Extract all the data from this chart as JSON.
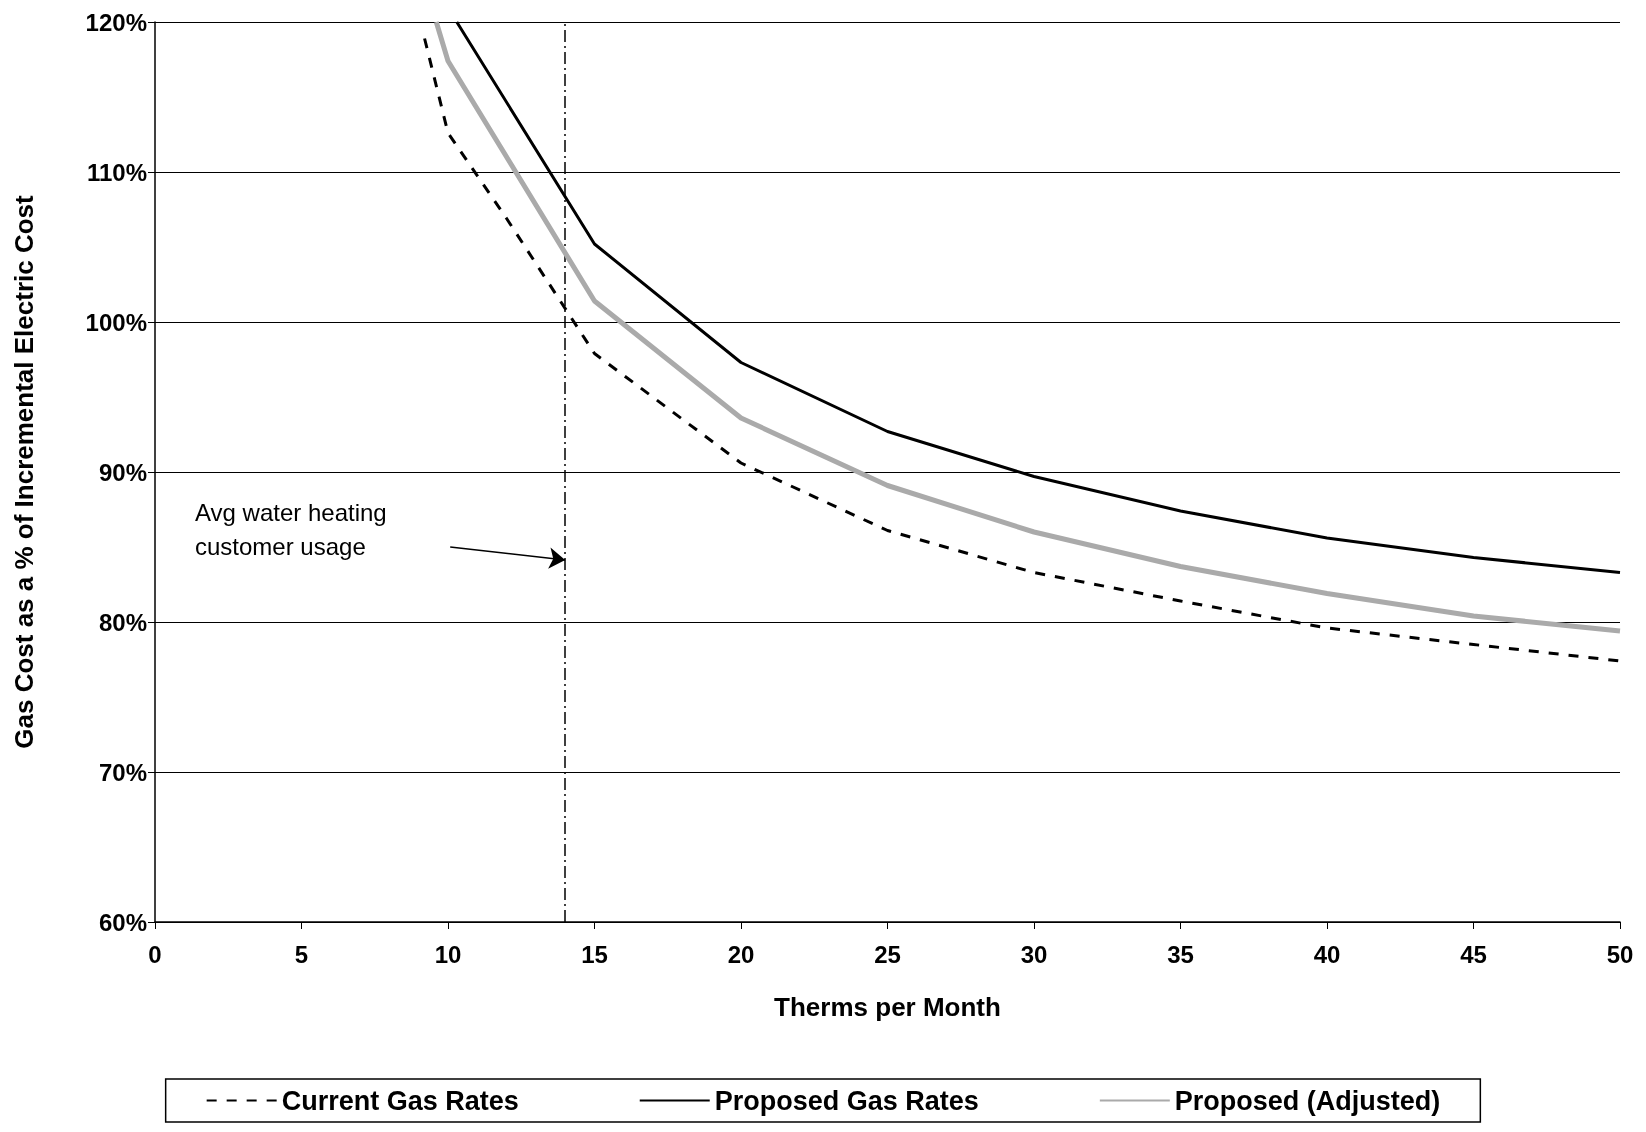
{
  "chart_data": {
    "type": "line",
    "xlabel": "Therms per Month",
    "ylabel": "Gas Cost as a % of Incremental Electric Cost",
    "xlim": [
      0,
      50
    ],
    "xticks": [
      0,
      5,
      10,
      15,
      20,
      25,
      30,
      35,
      40,
      45,
      50
    ],
    "ylim": [
      60,
      120
    ],
    "yticks": [
      {
        "value": 60,
        "label": "60%"
      },
      {
        "value": 70,
        "label": "70%"
      },
      {
        "value": 80,
        "label": "80%"
      },
      {
        "value": 90,
        "label": "90%"
      },
      {
        "value": 100,
        "label": "100%"
      },
      {
        "value": 110,
        "label": "110%"
      },
      {
        "value": 120,
        "label": "120%"
      }
    ],
    "grid": "y",
    "legend": "bottom",
    "marker": "none",
    "series": [
      {
        "name": "Current Gas Rates",
        "color": "#000000",
        "line_style": "dashed",
        "x": [
          9.2,
          10,
          12,
          15,
          20,
          25,
          30,
          35,
          40,
          45,
          50
        ],
        "values": [
          118.9,
          112.6,
          106.9,
          97.9,
          90.6,
          86.1,
          83.3,
          81.4,
          79.6,
          78.5,
          77.4
        ]
      },
      {
        "name": "Proposed Gas Rates",
        "color": "#000000",
        "line_style": "solid",
        "x": [
          10.3,
          15,
          20,
          25,
          30,
          35,
          40,
          45,
          50
        ],
        "values": [
          120,
          105.2,
          97.3,
          92.7,
          89.7,
          87.4,
          85.6,
          84.3,
          83.3
        ]
      },
      {
        "name": "Proposed (Adjusted)",
        "color": "#aaaaaa",
        "line_style": "solid",
        "x": [
          9.6,
          10,
          15,
          20,
          25,
          30,
          35,
          40,
          45,
          50
        ],
        "values": [
          120,
          117.4,
          101.4,
          93.6,
          89.1,
          86.0,
          83.7,
          81.9,
          80.4,
          79.4
        ]
      }
    ],
    "ref_lines": [
      {
        "axis": "x",
        "value": 14,
        "color": "#000000",
        "line_style": "dashed"
      }
    ],
    "annotations": [
      "Avg water heating\ncustomer usage"
    ]
  }
}
